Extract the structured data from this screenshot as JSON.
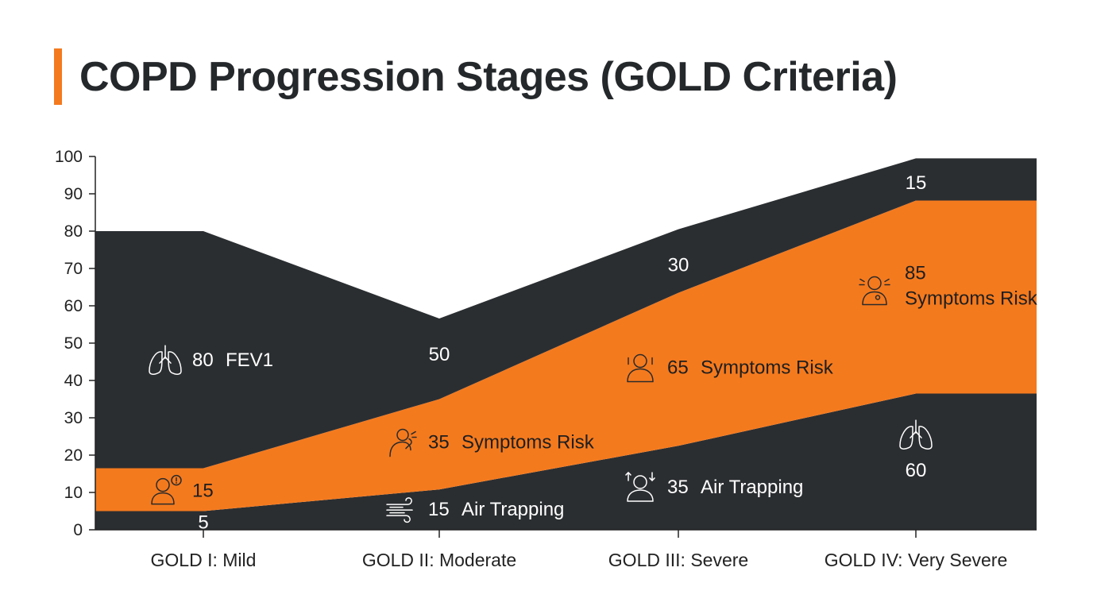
{
  "title": "COPD Progression Stages (GOLD Criteria)",
  "colors": {
    "accent": "#f47a1e",
    "dark": "#2b2e31",
    "orange": "#f47a1e",
    "text": "#222222"
  },
  "chart_data": {
    "type": "area",
    "stacked": true,
    "categories": [
      "GOLD I: Mild",
      "GOLD II: Moderate",
      "GOLD III: Severe",
      "GOLD IV: Very Severe"
    ],
    "ylim": [
      0,
      100
    ],
    "yticks": [
      0,
      10,
      20,
      30,
      40,
      50,
      60,
      70,
      80,
      90,
      100
    ],
    "grid": false,
    "legend": "none",
    "series": [
      {
        "color": "#2b2e31",
        "values": [
          5,
          10.8,
          22.5,
          36.5
        ]
      },
      {
        "color": "#f47a1e",
        "values": [
          11.5,
          24.2,
          41,
          51.7
        ]
      },
      {
        "color": "#2b2e31",
        "values": [
          63.5,
          21.6,
          17,
          11.3
        ]
      }
    ],
    "annotations": [
      {
        "category": 0,
        "y": 45.5,
        "icon": "lungs-icon",
        "value": "80",
        "text": "FEV1",
        "color": "light"
      },
      {
        "category": 0,
        "y": 10.5,
        "icon": "person-alert-icon",
        "value": "15",
        "text": "",
        "color": "dark"
      },
      {
        "category": 0,
        "y": 2,
        "icon": "",
        "value": "5",
        "text": "",
        "color": "light"
      },
      {
        "category": 1,
        "y": 47,
        "icon": "",
        "value": "50",
        "text": "",
        "color": "light"
      },
      {
        "category": 1,
        "y": 23.5,
        "icon": "coughing-person-icon",
        "value": "35",
        "text": "Symptoms Risk",
        "color": "dark"
      },
      {
        "category": 1,
        "y": 5.5,
        "icon": "wind-icon",
        "value": "15",
        "text": "Air Trapping",
        "color": "light"
      },
      {
        "category": 2,
        "y": 71,
        "icon": "",
        "value": "30",
        "text": "",
        "color": "light"
      },
      {
        "category": 2,
        "y": 43.5,
        "icon": "person-breathing-icon",
        "value": "65",
        "text": "Symptoms Risk",
        "color": "dark"
      },
      {
        "category": 2,
        "y": 11.5,
        "icon": "person-arrows-icon",
        "value": "35",
        "text": "Air Trapping",
        "color": "light"
      },
      {
        "category": 3,
        "y": 93,
        "icon": "",
        "value": "15",
        "text": "",
        "color": "light"
      },
      {
        "category": 3,
        "y": 65,
        "icon": "person-distress-icon",
        "value": "85",
        "text": "Symptoms Risk",
        "color": "dark",
        "stacked_text": true
      },
      {
        "category": 3,
        "y": 25.5,
        "icon": "lungs-icon",
        "value": "",
        "text": "",
        "color": "light"
      },
      {
        "category": 3,
        "y": 16,
        "icon": "",
        "value": "60",
        "text": "",
        "color": "light"
      }
    ]
  }
}
